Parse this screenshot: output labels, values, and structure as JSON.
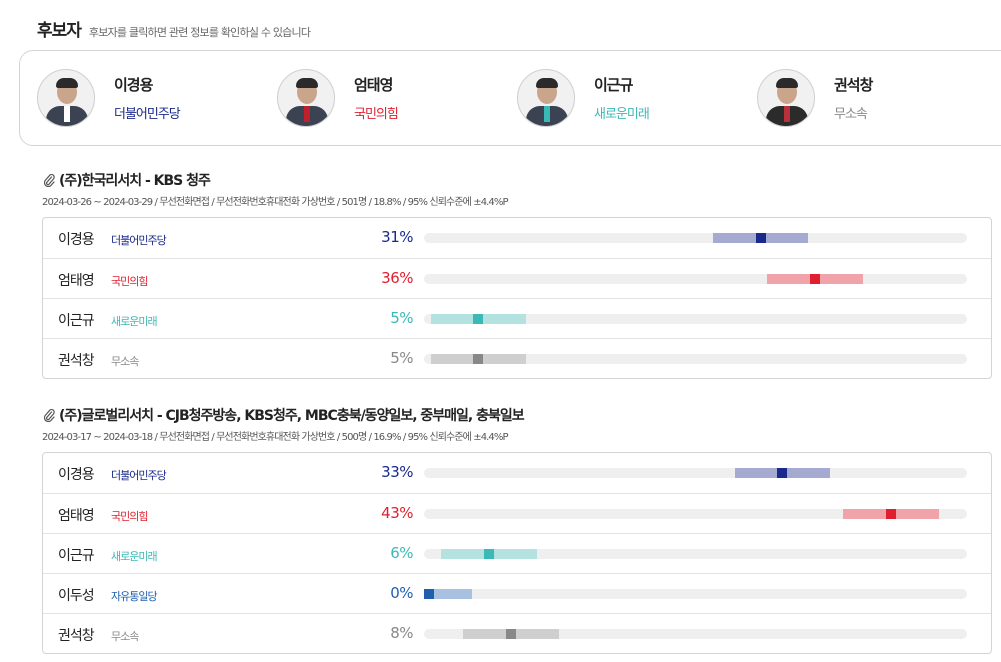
{
  "header": {
    "title": "후보자",
    "subtitle": "후보자를 클릭하면 관련 정보를 확인하실 수 있습니다"
  },
  "candidates": [
    {
      "name": "이경용",
      "party": "더불어민주당",
      "color": "#1a2a8c"
    },
    {
      "name": "엄태영",
      "party": "국민의힘",
      "color": "#e01f2e"
    },
    {
      "name": "이근규",
      "party": "새로운미래",
      "color": "#3bb9b6"
    },
    {
      "name": "권석창",
      "party": "무소속",
      "color": "#888888"
    }
  ],
  "polls": [
    {
      "title": "(주)한국리서치 - KBS 청주",
      "meta": "2024-03-26 ~ 2024-03-29 / 무선전화면접 / 무선전화번호휴대전화 가상번호 / 501명 / 18.8% / 95% 신뢰수준에 ±4.4%P",
      "margin": 4.4,
      "rows": [
        {
          "name": "이경용",
          "party": "더불어민주당",
          "pct": "31%",
          "value": 31,
          "color": "#1a2a8c",
          "light": "#a5aad0"
        },
        {
          "name": "엄태영",
          "party": "국민의힘",
          "pct": "36%",
          "value": 36,
          "color": "#e01f2e",
          "light": "#f0a3a9"
        },
        {
          "name": "이근규",
          "party": "새로운미래",
          "pct": "5%",
          "value": 5,
          "color": "#3bb9b6",
          "light": "#b3e2e1"
        },
        {
          "name": "권석창",
          "party": "무소속",
          "pct": "5%",
          "value": 5,
          "color": "#888888",
          "light": "#cfcfcf"
        }
      ]
    },
    {
      "title": "(주)글로벌리서치 - CJB청주방송, KBS청주, MBC충북/동양일보, 중부매일, 충북일보",
      "meta": "2024-03-17 ~ 2024-03-18 / 무선전화면접 / 무선전화번호휴대전화 가상번호 / 500명 / 16.9% / 95% 신뢰수준에 ±4.4%P",
      "margin": 4.4,
      "rows": [
        {
          "name": "이경용",
          "party": "더불어민주당",
          "pct": "33%",
          "value": 33,
          "color": "#1a2a8c",
          "light": "#a5aad0"
        },
        {
          "name": "엄태영",
          "party": "국민의힘",
          "pct": "43%",
          "value": 43,
          "color": "#e01f2e",
          "light": "#f0a3a9"
        },
        {
          "name": "이근규",
          "party": "새로운미래",
          "pct": "6%",
          "value": 6,
          "color": "#3bb9b6",
          "light": "#b3e2e1"
        },
        {
          "name": "이두성",
          "party": "자유통일당",
          "pct": "0%",
          "value": 0,
          "color": "#1f5fae",
          "light": "#a9c1e0"
        },
        {
          "name": "권석창",
          "party": "무소속",
          "pct": "8%",
          "value": 8,
          "color": "#888888",
          "light": "#cfcfcf"
        }
      ]
    }
  ]
}
